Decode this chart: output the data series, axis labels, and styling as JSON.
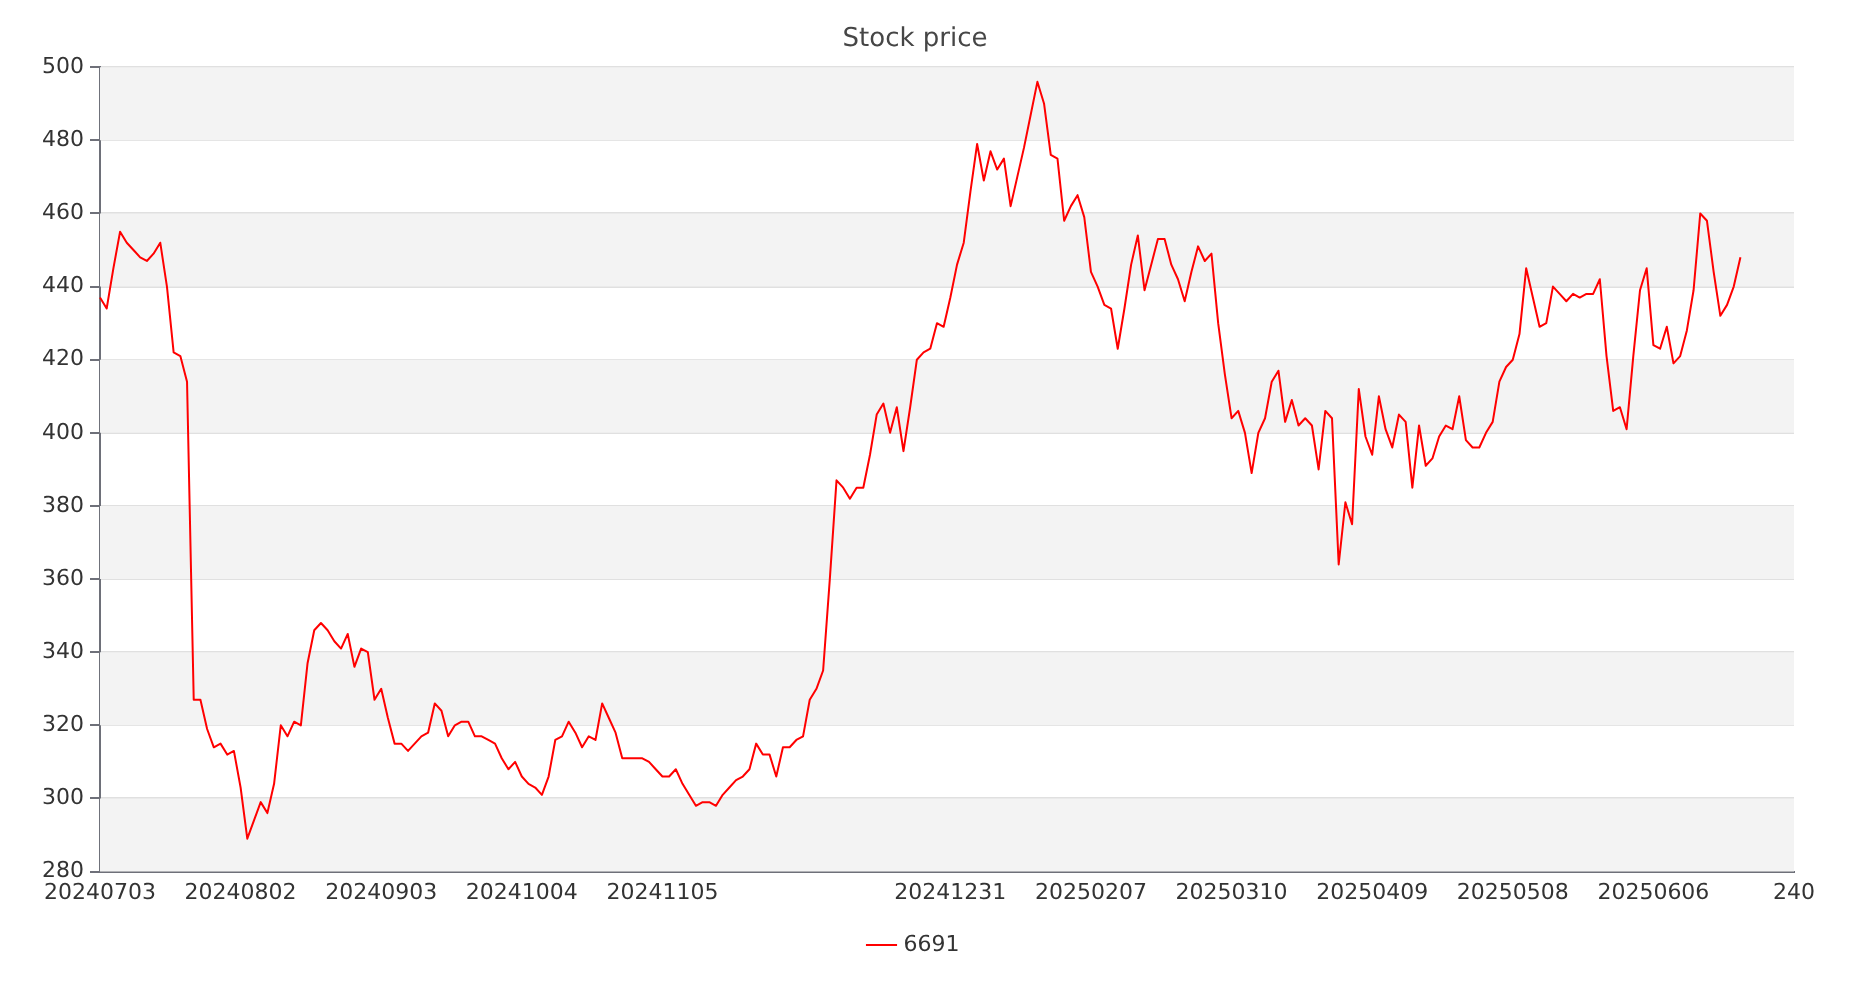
{
  "chart_data": {
    "type": "line",
    "title": "Stock price",
    "categories": [
      "20240703",
      null,
      null,
      null,
      null,
      null,
      null,
      null,
      null,
      null,
      null,
      null,
      null,
      null,
      null,
      null,
      null,
      null,
      null,
      null,
      null,
      "20240802",
      null,
      null,
      null,
      null,
      null,
      null,
      null,
      null,
      null,
      null,
      null,
      null,
      null,
      null,
      null,
      null,
      null,
      null,
      null,
      null,
      "20240903",
      null,
      null,
      null,
      null,
      null,
      null,
      null,
      null,
      null,
      null,
      null,
      null,
      null,
      null,
      null,
      null,
      null,
      null,
      null,
      null,
      "20241004",
      null,
      null,
      null,
      null,
      null,
      null,
      null,
      null,
      null,
      null,
      null,
      null,
      null,
      null,
      null,
      null,
      null,
      null,
      null,
      null,
      "20241105",
      null,
      null,
      null,
      null,
      null,
      null,
      null,
      null,
      null,
      null,
      null,
      null,
      null,
      null,
      null,
      null,
      null,
      null,
      null,
      null,
      null,
      null,
      null,
      null,
      null,
      null,
      null,
      null,
      null,
      null,
      null,
      null,
      null,
      null,
      null,
      null,
      null,
      null,
      null,
      null,
      null,
      null,
      "20241231",
      null,
      null,
      null,
      null,
      null,
      null,
      null,
      null,
      null,
      null,
      null,
      null,
      null,
      null,
      null,
      null,
      null,
      null,
      null,
      null,
      "20250207",
      null,
      null,
      null,
      null,
      null,
      null,
      null,
      null,
      null,
      null,
      null,
      null,
      null,
      null,
      null,
      null,
      null,
      null,
      null,
      null,
      "20250310",
      null,
      null,
      null,
      null,
      null,
      null,
      null,
      null,
      null,
      null,
      null,
      null,
      null,
      null,
      null,
      null,
      null,
      null,
      null,
      null,
      "20250409",
      null,
      null,
      null,
      null,
      null,
      null,
      null,
      null,
      null,
      null,
      null,
      null,
      null,
      null,
      null,
      null,
      null,
      null,
      null,
      null,
      "20250508",
      null,
      null,
      null,
      null,
      null,
      null,
      null,
      null,
      null,
      null,
      null,
      null,
      null,
      null,
      null,
      null,
      null,
      null,
      null,
      null,
      "20250606",
      null,
      null,
      null,
      null,
      null,
      null,
      null,
      null,
      null,
      null,
      null,
      null,
      null,
      null,
      null,
      null,
      null,
      null,
      null,
      null,
      "240"
    ],
    "series": [
      {
        "name": "6691",
        "color": "#ff0000",
        "values": [
          437,
          434,
          445,
          455,
          452,
          450,
          448,
          447,
          449,
          452,
          440,
          422,
          421,
          414,
          327,
          327,
          319,
          314,
          315,
          312,
          313,
          303,
          289,
          294,
          299,
          296,
          304,
          320,
          317,
          321,
          320,
          337,
          346,
          348,
          346,
          343,
          341,
          345,
          336,
          341,
          340,
          327,
          330,
          322,
          315,
          315,
          313,
          315,
          317,
          318,
          326,
          324,
          317,
          320,
          321,
          321,
          317,
          317,
          316,
          315,
          311,
          308,
          310,
          306,
          304,
          303,
          301,
          306,
          316,
          317,
          321,
          318,
          314,
          317,
          316,
          326,
          322,
          318,
          311,
          311,
          311,
          311,
          310,
          308,
          306,
          306,
          308,
          304,
          301,
          298,
          299,
          299,
          298,
          301,
          303,
          305,
          306,
          308,
          315,
          312,
          312,
          306,
          314,
          314,
          316,
          317,
          327,
          330,
          335,
          360,
          387,
          385,
          382,
          385,
          385,
          394,
          405,
          408,
          400,
          407,
          395,
          407,
          420,
          422,
          423,
          430,
          429,
          437,
          446,
          452,
          466,
          479,
          469,
          477,
          472,
          475,
          462,
          470,
          478,
          487,
          496,
          490,
          476,
          475,
          458,
          462,
          465,
          459,
          444,
          440,
          435,
          434,
          423,
          434,
          446,
          454,
          439,
          446,
          453,
          453,
          446,
          442,
          436,
          444,
          451,
          447,
          449,
          430,
          416,
          404,
          406,
          400,
          389,
          400,
          404,
          414,
          417,
          403,
          409,
          402,
          404,
          402,
          390,
          406,
          404,
          364,
          381,
          375,
          412,
          399,
          394,
          410,
          401,
          396,
          405,
          403,
          385,
          402,
          391,
          393,
          399,
          402,
          401,
          410,
          398,
          396,
          396,
          400,
          403,
          414,
          418,
          420,
          427,
          445,
          437,
          429,
          430,
          440,
          438,
          436,
          438,
          437,
          438,
          438,
          442,
          421,
          406,
          407,
          401,
          421,
          439,
          445,
          424,
          423,
          429,
          419,
          421,
          428,
          439,
          460,
          458,
          444,
          432,
          435,
          440,
          448,
          null,
          null,
          null,
          null,
          null,
          null,
          null,
          null
        ]
      }
    ],
    "ylim": [
      280,
      500
    ],
    "yticks": [
      280,
      300,
      320,
      340,
      360,
      380,
      400,
      420,
      440,
      460,
      480,
      500
    ],
    "grid": "y",
    "legend": "bottom",
    "marker": "none",
    "line_style": "solid"
  }
}
